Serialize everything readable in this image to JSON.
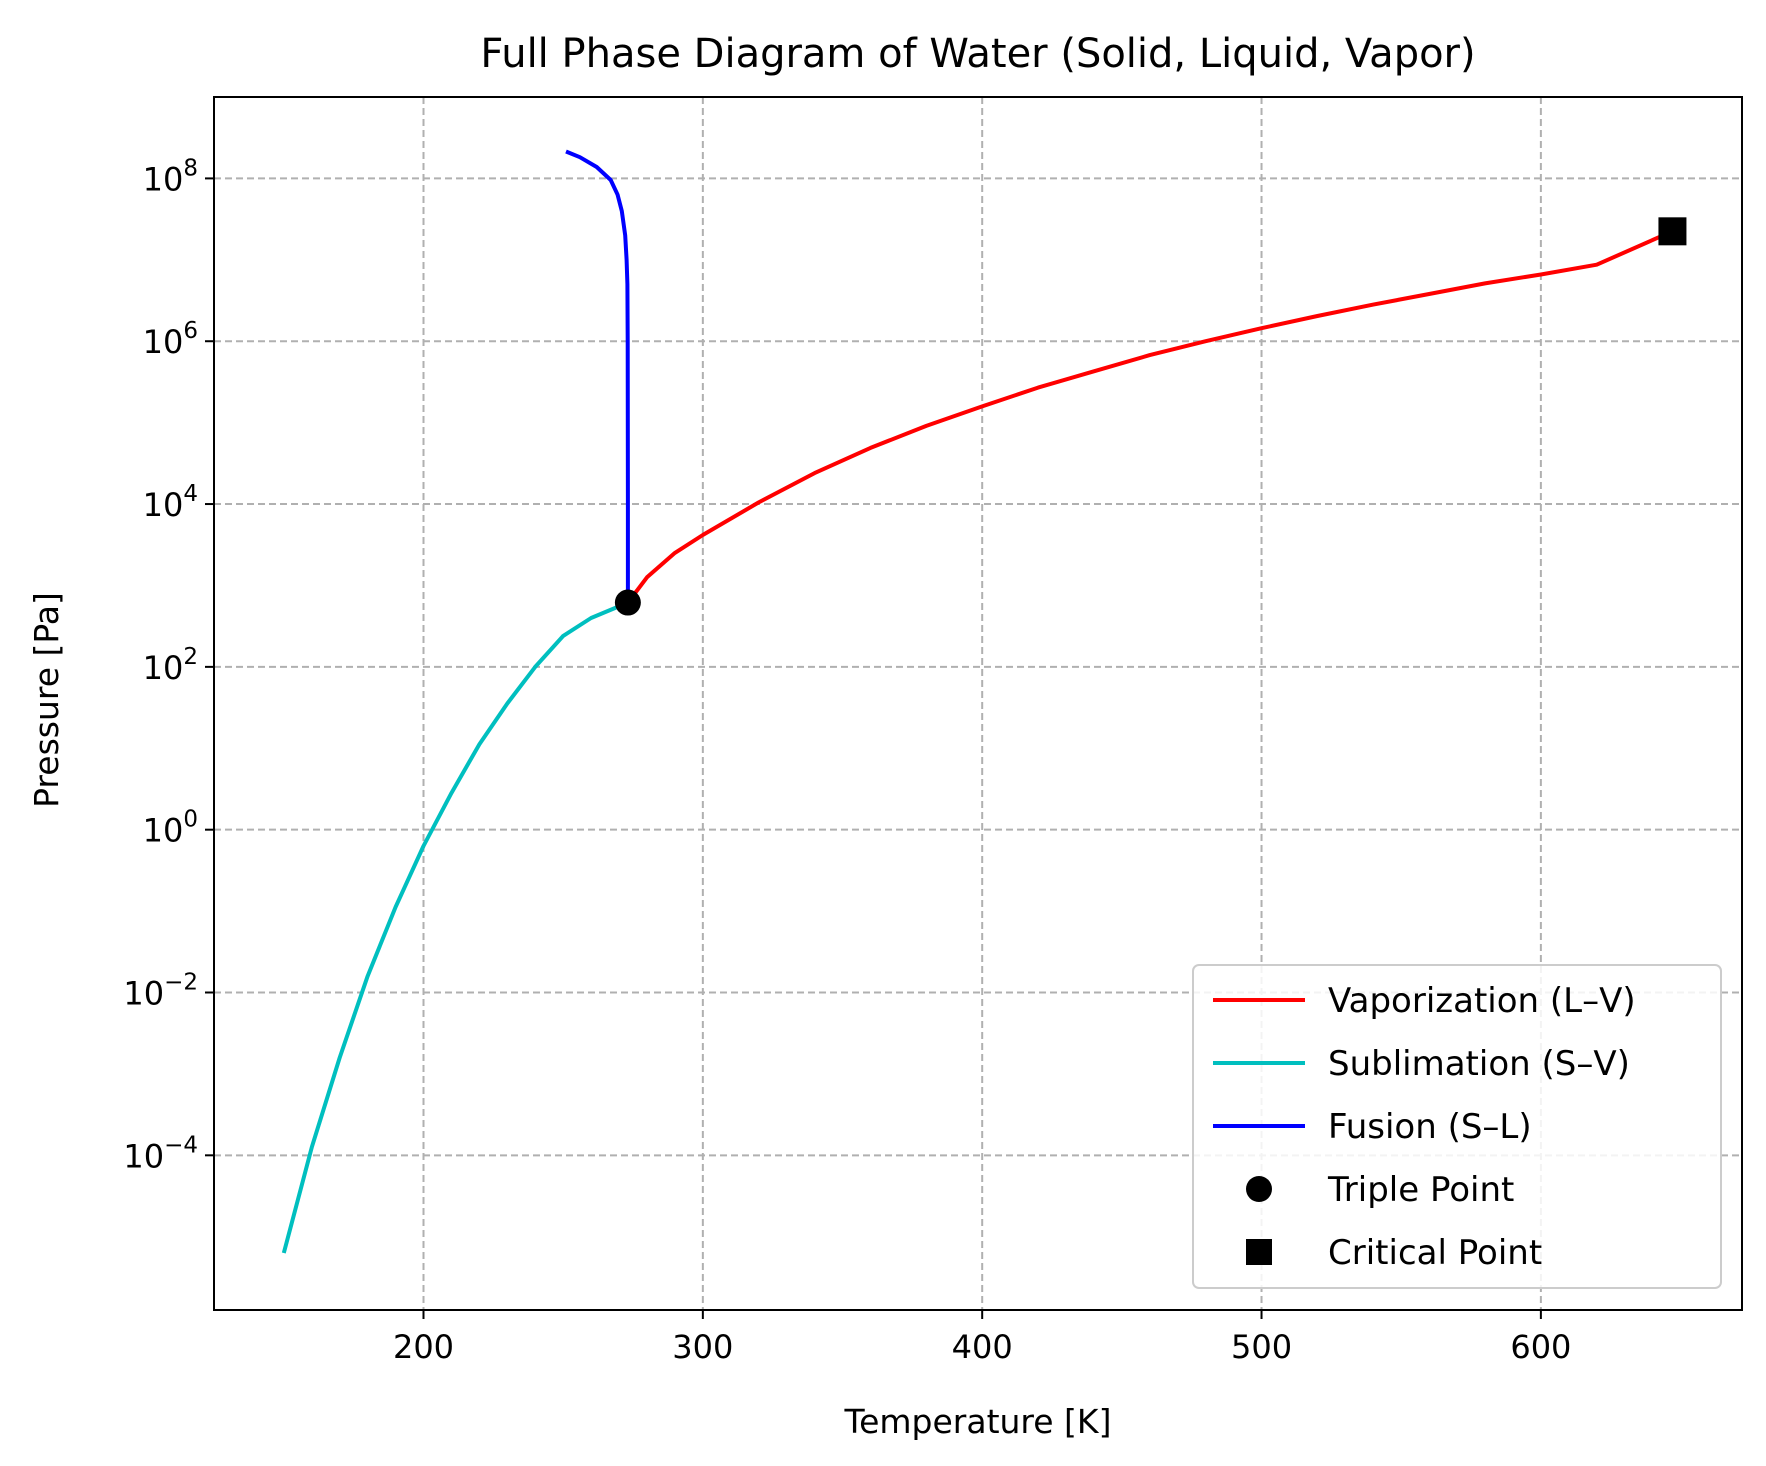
{
  "chart_data": {
    "type": "line",
    "title": "Full Phase Diagram of Water (Solid, Liquid, Vapor)",
    "xlabel": "Temperature [K]",
    "ylabel": "Pressure [Pa]",
    "xlim": [
      125,
      672
    ],
    "ylim_log10": [
      -5.9,
      9.0
    ],
    "y_scale": "log",
    "grid": true,
    "legend_position": "lower-right",
    "x_ticks": [
      {
        "value": 200,
        "label": "200"
      },
      {
        "value": 300,
        "label": "300"
      },
      {
        "value": 400,
        "label": "400"
      },
      {
        "value": 500,
        "label": "500"
      },
      {
        "value": 600,
        "label": "600"
      }
    ],
    "y_ticks": [
      {
        "log": 8,
        "base": "10",
        "exp": "8"
      },
      {
        "log": 6,
        "base": "10",
        "exp": "6"
      },
      {
        "log": 4,
        "base": "10",
        "exp": "4"
      },
      {
        "log": 2,
        "base": "10",
        "exp": "2"
      },
      {
        "log": 0,
        "base": "10",
        "exp": "0"
      },
      {
        "log": -2,
        "base": "10",
        "exp": "−2"
      },
      {
        "log": -4,
        "base": "10",
        "exp": "−4"
      }
    ],
    "series": [
      {
        "name": "Vaporization (L–V)",
        "color": "#ff0000",
        "x": [
          273.16,
          280,
          290,
          300,
          320,
          340,
          360,
          380,
          400,
          420,
          440,
          460,
          480,
          500,
          520,
          540,
          560,
          580,
          600,
          620,
          647.1
        ],
        "y_log10": [
          2.79,
          3.1,
          3.4,
          3.62,
          4.02,
          4.38,
          4.69,
          4.96,
          5.2,
          5.43,
          5.63,
          5.83,
          6.0,
          6.16,
          6.31,
          6.45,
          6.58,
          6.71,
          6.82,
          6.94,
          7.35
        ]
      },
      {
        "name": "Sublimation (S–V)",
        "color": "#00bfbf",
        "x": [
          150,
          160,
          170,
          180,
          190,
          200,
          210,
          220,
          230,
          240,
          250,
          260,
          273.16
        ],
        "y_log10": [
          -5.2,
          -3.9,
          -2.8,
          -1.8,
          -0.95,
          -0.2,
          0.5,
          1.1,
          1.62,
          2.06,
          2.45,
          2.72,
          2.79
        ],
        "y_log10_adjusted": [
          -5.2,
          -3.9,
          -2.8,
          -1.8,
          -0.95,
          -0.2,
          0.45,
          1.05,
          1.55,
          2.0,
          2.38,
          2.6,
          2.79
        ]
      },
      {
        "name": "Fusion (S–L)",
        "color": "#0000ff",
        "x": [
          273.16,
          273.16,
          273.1,
          273.0,
          272.7,
          272.2,
          271.0,
          269.5,
          267.0,
          262.0,
          256.0,
          251.0
        ],
        "y_log10": [
          2.79,
          4.0,
          6.0,
          6.7,
          7.0,
          7.3,
          7.6,
          7.8,
          7.98,
          8.14,
          8.26,
          8.33
        ]
      }
    ],
    "markers": [
      {
        "name": "Triple Point",
        "shape": "circle",
        "color": "#000000",
        "x": 273.16,
        "y_log10": 2.79
      },
      {
        "name": "Critical Point",
        "shape": "square",
        "color": "#000000",
        "x": 647.1,
        "y_log10": 7.35
      }
    ]
  }
}
